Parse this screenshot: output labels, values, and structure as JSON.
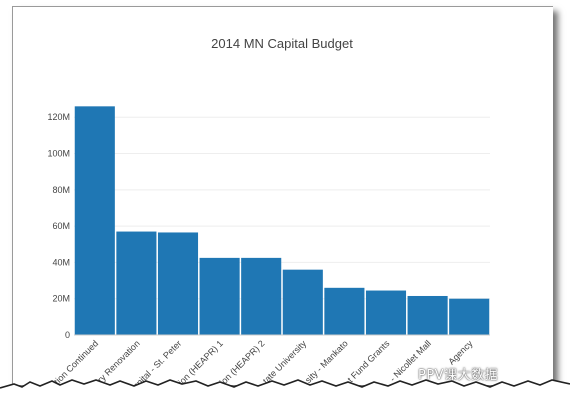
{
  "chart_data": {
    "type": "bar",
    "title": "2014 MN Capital Budget",
    "xlabel": "",
    "ylabel": "",
    "ylim": [
      0,
      135000000
    ],
    "yticks": [
      0,
      20000000,
      40000000,
      60000000,
      80000000,
      100000000,
      120000000
    ],
    "ytick_labels": [
      "0",
      "20M",
      "40M",
      "60M",
      "80M",
      "100M",
      "120M"
    ],
    "categories": [
      "tion Continued",
      "ory Renovation",
      "spital - St. Peter",
      "tion (HEAPR) 1",
      "tion (HEAPR) 2",
      "tate University",
      "sity - Mankato",
      "t Fund Grants",
      "- Nicollet Mall",
      "Agency"
    ],
    "values": [
      126000000,
      57000000,
      56500000,
      42500000,
      42500000,
      36000000,
      26000000,
      24500000,
      21500000,
      20000000
    ],
    "bar_color": "#1f77b4",
    "grid": true
  },
  "watermark": {
    "text": "PPV课大数据"
  }
}
